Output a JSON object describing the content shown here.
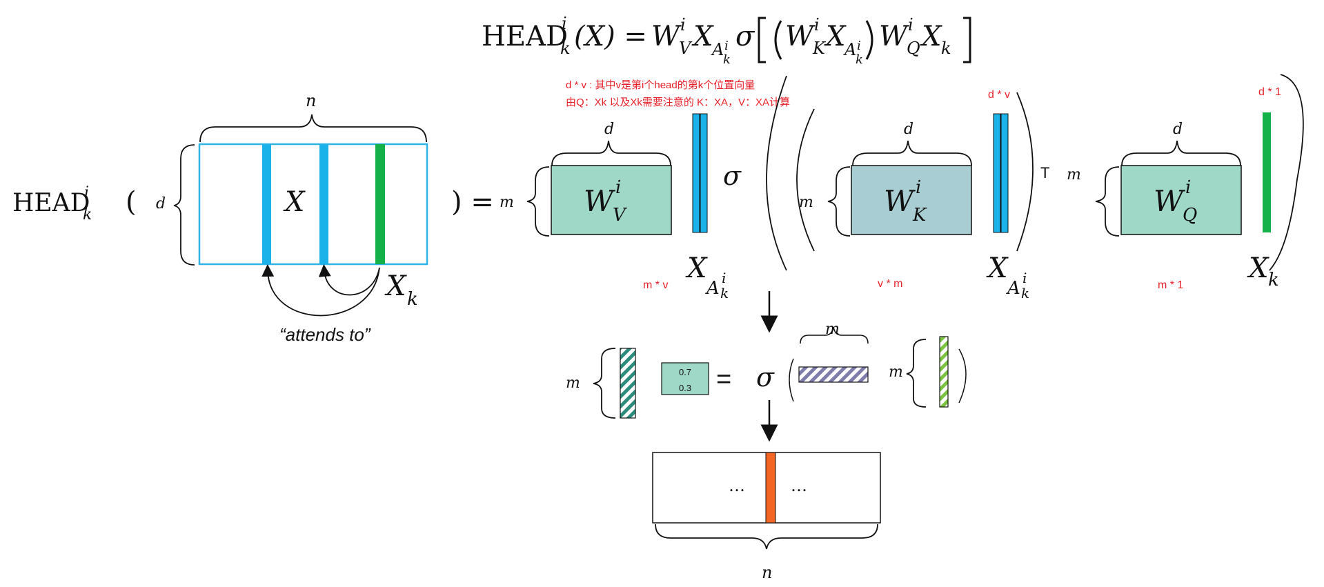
{
  "formula": {
    "head": "HEAD",
    "sup_i": "i",
    "sub_k": "k",
    "arg": "(X) = ",
    "W": "W",
    "V": "V",
    "K": "K",
    "Q": "Q",
    "X": "X",
    "A": "A",
    "sigma": "σ"
  },
  "annotations": {
    "note_line1": "d * v : 其中v是第i个head的第k个位置向量",
    "note_line2": "由Q：Xk 以及Xk需要注意的 K：XA，V：XA计算",
    "dv_right": "d * v",
    "d1": "d * 1",
    "mv": "m * v",
    "vm": "v * m",
    "m1": "m * 1",
    "transpose": "T"
  },
  "left_block": {
    "head": "HEAD",
    "sup_i": "i",
    "sub_k": "k",
    "open_paren": "(",
    "close_equals": ") =",
    "dim_n": "n",
    "dim_d": "d",
    "matrix_label": "X",
    "xk_X": "X",
    "xk_k": "k",
    "attends_to": "“attends to”"
  },
  "weights": {
    "dim_d": "d",
    "dim_m": "m"
  },
  "softmax_row": {
    "values": [
      "0.7",
      "0.3"
    ],
    "equals": "=",
    "sigma": "σ",
    "dim_m": "m"
  },
  "output": {
    "ellipsis": "…",
    "dim_n": "n"
  },
  "colors": {
    "blue_bar": "#1ab2e8",
    "green_bar": "#14b14b",
    "teal_fill": "#9fd8c7",
    "wk_fill": "#a8cdd2",
    "orange_bar": "#f26522",
    "matrix_border": "#2fb4e8",
    "annotation_red": "#e8202a",
    "hatch_teal": "#2b8c7c",
    "hatch_purple": "#7d7cab",
    "hatch_green": "#7cc342"
  }
}
